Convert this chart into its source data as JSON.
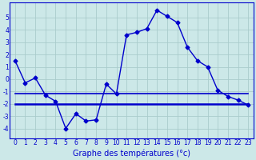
{
  "xlabel": "Graphe des températures (°c)",
  "hours": [
    0,
    1,
    2,
    3,
    4,
    5,
    6,
    7,
    8,
    9,
    10,
    11,
    12,
    13,
    14,
    15,
    16,
    17,
    18,
    19,
    20,
    21,
    22,
    23
  ],
  "temp_line": [
    1.5,
    -0.3,
    0.1,
    -1.3,
    -1.8,
    -4.0,
    -2.8,
    -3.4,
    -3.3,
    -0.4,
    -1.2,
    3.6,
    3.8,
    4.1,
    5.6,
    5.1,
    4.6,
    2.6,
    1.5,
    1.0,
    -0.9,
    -1.4,
    -1.7,
    -2.1
  ],
  "flat_line1": -1.2,
  "flat_line2": -2.0,
  "ylim": [
    -4.8,
    6.2
  ],
  "yticks": [
    -4,
    -3,
    -2,
    -1,
    0,
    1,
    2,
    3,
    4,
    5
  ],
  "line_color": "#0000cc",
  "bg_color": "#cce8e8",
  "grid_color": "#aacccc",
  "marker": "D",
  "marker_size": 2.5,
  "line_width": 1.0,
  "flat_lw1": 1.2,
  "flat_lw2": 1.8,
  "tick_fontsize": 5.5,
  "xlabel_fontsize": 7.0
}
